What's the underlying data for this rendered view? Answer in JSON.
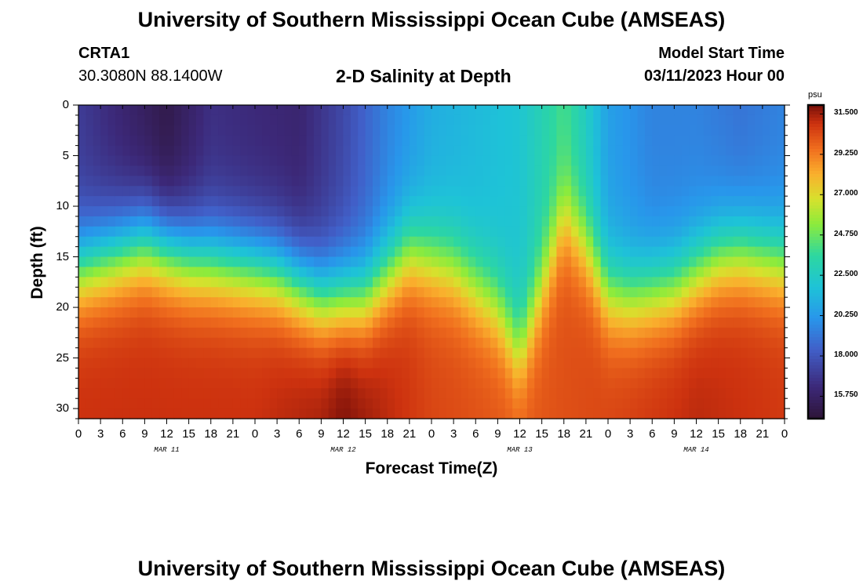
{
  "title": "University of Southern Mississippi Ocean Cube (AMSEAS)",
  "footer_title": "University of Southern Mississippi Ocean Cube (AMSEAS)",
  "station": {
    "id": "CRTA1",
    "location": "30.3080N  88.1400W"
  },
  "model": {
    "start_label": "Model Start Time",
    "start_value": "03/11/2023 Hour 00"
  },
  "chart_data": {
    "type": "heatmap",
    "title": "2-D Salinity at Depth",
    "xlabel": "Forecast Time(Z)",
    "ylabel": "Depth (ft)",
    "x_range_hours": [
      0,
      96
    ],
    "ylim": [
      0,
      31
    ],
    "y_ticks": [
      "0",
      "5",
      "10",
      "15",
      "20",
      "25",
      "30"
    ],
    "x_tick_labels": [
      "0",
      "3",
      "6",
      "9",
      "12",
      "15",
      "18",
      "21",
      "0",
      "3",
      "6",
      "9",
      "12",
      "15",
      "18",
      "21",
      "0",
      "3",
      "6",
      "9",
      "12",
      "15",
      "18",
      "21",
      "0",
      "3",
      "6",
      "9",
      "12",
      "15",
      "18",
      "21",
      "0"
    ],
    "date_labels": [
      {
        "label": "MAR 11",
        "hour": 12
      },
      {
        "label": "MAR 12",
        "hour": 36
      },
      {
        "label": "MAR 13",
        "hour": 60
      },
      {
        "label": "MAR 14",
        "hour": 84
      }
    ],
    "colorbar": {
      "unit": "psu",
      "range": [
        14.5,
        32.0
      ],
      "ticks": [
        "31.500",
        "29.250",
        "27.000",
        "24.750",
        "22.500",
        "20.250",
        "18.000",
        "15.750"
      ]
    },
    "halocline_depth_ft_by_hour": [
      {
        "hour": 0,
        "depth": 16.0
      },
      {
        "hour": 9,
        "depth": 13.5
      },
      {
        "hour": 15,
        "depth": 15.0
      },
      {
        "hour": 24,
        "depth": 16.0
      },
      {
        "hour": 27,
        "depth": 16.5
      },
      {
        "hour": 33,
        "depth": 19.0
      },
      {
        "hour": 39,
        "depth": 19.0
      },
      {
        "hour": 45,
        "depth": 14.5
      },
      {
        "hour": 51,
        "depth": 16.0
      },
      {
        "hour": 57,
        "depth": 20.0
      },
      {
        "hour": 60,
        "depth": 24.5
      },
      {
        "hour": 63,
        "depth": 18.0
      },
      {
        "hour": 66,
        "depth": 11.0
      },
      {
        "hour": 69,
        "depth": 14.0
      },
      {
        "hour": 72,
        "depth": 18.5
      },
      {
        "hour": 75,
        "depth": 19.0
      },
      {
        "hour": 81,
        "depth": 18.0
      },
      {
        "hour": 84,
        "depth": 16.5
      },
      {
        "hour": 87,
        "depth": 15.0
      },
      {
        "hour": 90,
        "depth": 14.5
      },
      {
        "hour": 96,
        "depth": 15.5
      }
    ],
    "surface_salinity_psu_by_hour": [
      {
        "hour": 0,
        "value": 17.0
      },
      {
        "hour": 12,
        "value": 15.0
      },
      {
        "hour": 18,
        "value": 16.5
      },
      {
        "hour": 30,
        "value": 16.0
      },
      {
        "hour": 36,
        "value": 17.5
      },
      {
        "hour": 42,
        "value": 19.5
      },
      {
        "hour": 48,
        "value": 21.0
      },
      {
        "hour": 54,
        "value": 21.5
      },
      {
        "hour": 60,
        "value": 22.0
      },
      {
        "hour": 63,
        "value": 23.0
      },
      {
        "hour": 66,
        "value": 24.0
      },
      {
        "hour": 69,
        "value": 22.5
      },
      {
        "hour": 72,
        "value": 20.5
      },
      {
        "hour": 78,
        "value": 19.5
      },
      {
        "hour": 84,
        "value": 19.5
      },
      {
        "hour": 90,
        "value": 19.0
      },
      {
        "hour": 96,
        "value": 19.5
      }
    ],
    "bottom_salinity_psu_by_hour": [
      {
        "hour": 0,
        "value": 31.0
      },
      {
        "hour": 24,
        "value": 31.0
      },
      {
        "hour": 33,
        "value": 31.5
      },
      {
        "hour": 36,
        "value": 32.0
      },
      {
        "hour": 42,
        "value": 31.2
      },
      {
        "hour": 48,
        "value": 30.5
      },
      {
        "hour": 60,
        "value": 30.0
      },
      {
        "hour": 72,
        "value": 30.5
      },
      {
        "hour": 84,
        "value": 31.2
      },
      {
        "hour": 96,
        "value": 30.8
      }
    ]
  }
}
